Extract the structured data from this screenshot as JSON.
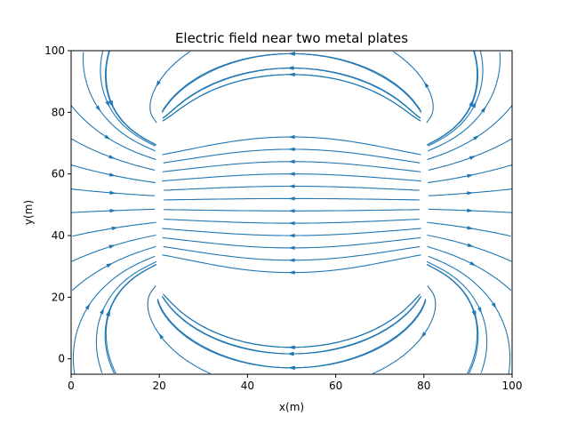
{
  "chart_data": {
    "type": "streamplot",
    "title": "Electric field near two metal plates",
    "xlabel": "x(m)",
    "ylabel": "y(m)",
    "xlim": [
      0,
      100
    ],
    "ylim": [
      -5,
      100
    ],
    "xticks": [
      0,
      20,
      40,
      60,
      80,
      100
    ],
    "yticks": [
      0,
      20,
      40,
      60,
      80,
      100
    ],
    "grid": false,
    "line_color": "#1f77b4",
    "plates": [
      {
        "x": 20,
        "y_from": 20,
        "y_to": 80
      },
      {
        "x": 80,
        "y_from": 20,
        "y_to": 80
      }
    ],
    "field": {
      "description_units": "m",
      "between_plates_direction": "+x",
      "outside_left_direction": "-x",
      "outside_right_direction": "+x"
    }
  }
}
